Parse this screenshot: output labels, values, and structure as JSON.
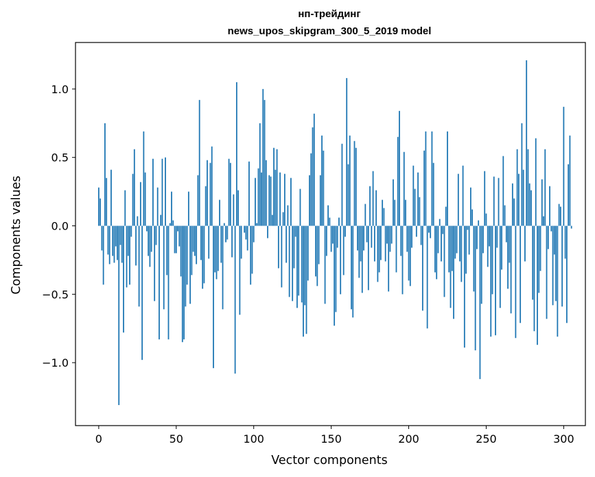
{
  "chart_data": {
    "type": "bar",
    "title": "нп-трейдинг",
    "subtitle": "news_upos_skipgram_300_5_2019 model",
    "xlabel": "Vector components",
    "ylabel": "Components values",
    "xlim": [
      -15,
      314
    ],
    "ylim": [
      -1.46,
      1.34
    ],
    "xticks": [
      0,
      50,
      100,
      150,
      200,
      250,
      300
    ],
    "xtick_labels": [
      "0",
      "50",
      "100",
      "150",
      "200",
      "250",
      "300"
    ],
    "yticks": [
      -1.0,
      -0.5,
      0.0,
      0.5,
      1.0
    ],
    "ytick_labels": [
      "−1.0",
      "−0.5",
      "0.0",
      "0.5",
      "1.0"
    ],
    "bar_color": "#1f77b4",
    "values": [
      0.28,
      0.2,
      -0.18,
      -0.43,
      0.75,
      0.35,
      -0.21,
      -0.28,
      0.41,
      -0.22,
      -0.27,
      -0.15,
      -0.25,
      -1.31,
      -0.14,
      -0.27,
      -0.78,
      0.26,
      -0.45,
      -0.22,
      -0.43,
      -0.08,
      0.38,
      0.56,
      -0.29,
      0.07,
      -0.59,
      0.32,
      -0.98,
      0.69,
      0.39,
      -0.04,
      -0.22,
      -0.3,
      -0.19,
      0.49,
      -0.55,
      -0.14,
      0.28,
      -0.83,
      0.08,
      0.49,
      -0.61,
      0.5,
      -0.36,
      -0.83,
      0.02,
      0.25,
      0.04,
      -0.2,
      -0.2,
      -0.04,
      -0.15,
      -0.37,
      -0.85,
      -0.83,
      -0.59,
      -0.43,
      0.25,
      -0.57,
      -0.36,
      -0.19,
      -0.22,
      -0.28,
      0.37,
      0.92,
      -0.25,
      -0.46,
      -0.42,
      0.29,
      0.48,
      -0.24,
      0.46,
      0.58,
      -1.04,
      -0.34,
      -0.39,
      -0.33,
      0.19,
      -0.27,
      -0.61,
      0.02,
      -0.12,
      -0.1,
      0.49,
      0.46,
      -0.23,
      0.23,
      -1.08,
      1.05,
      0.26,
      -0.65,
      -0.24,
      0.0,
      -0.05,
      -0.1,
      -0.18,
      0.47,
      -0.43,
      -0.35,
      -0.12,
      0.35,
      0.02,
      0.42,
      0.75,
      0.39,
      1.0,
      0.92,
      0.48,
      -0.09,
      0.37,
      0.36,
      0.08,
      0.57,
      0.41,
      0.56,
      -0.31,
      0.39,
      -0.45,
      0.1,
      0.38,
      -0.27,
      0.15,
      -0.52,
      0.35,
      -0.55,
      -0.31,
      -0.08,
      -0.6,
      -0.51,
      0.27,
      -0.56,
      -0.81,
      -0.58,
      -0.79,
      -0.4,
      0.37,
      0.53,
      0.72,
      0.82,
      -0.37,
      -0.44,
      -0.28,
      0.37,
      0.66,
      0.55,
      -0.57,
      -0.22,
      0.15,
      0.06,
      -0.19,
      -0.13,
      -0.73,
      -0.63,
      -0.16,
      0.06,
      -0.5,
      0.6,
      -0.36,
      -0.08,
      1.08,
      0.45,
      0.66,
      -0.61,
      -0.67,
      0.62,
      0.57,
      -0.18,
      -0.38,
      -0.26,
      -0.49,
      -0.18,
      0.16,
      -0.12,
      -0.47,
      0.29,
      -0.16,
      0.4,
      -0.26,
      0.26,
      -0.41,
      -0.34,
      -0.25,
      0.19,
      0.13,
      -0.26,
      -0.13,
      -0.48,
      -0.19,
      -0.13,
      0.34,
      0.19,
      -0.34,
      0.65,
      0.84,
      -0.22,
      -0.5,
      0.54,
      0.19,
      -0.19,
      -0.4,
      -0.44,
      -0.16,
      0.44,
      0.27,
      -0.08,
      0.39,
      0.21,
      -0.14,
      -0.62,
      0.55,
      0.69,
      -0.75,
      -0.05,
      -0.09,
      0.69,
      0.46,
      -0.34,
      -0.39,
      -0.2,
      0.05,
      -0.26,
      -0.06,
      -0.52,
      0.14,
      0.69,
      -0.34,
      -0.6,
      -0.33,
      -0.68,
      -0.24,
      -0.2,
      0.38,
      -0.26,
      -0.41,
      0.44,
      -0.89,
      -0.35,
      -0.03,
      -0.21,
      0.28,
      0.12,
      -0.48,
      -0.91,
      -0.17,
      0.04,
      -1.12,
      -0.57,
      -0.2,
      0.4,
      0.09,
      -0.3,
      -0.15,
      -0.81,
      -0.5,
      0.36,
      -0.8,
      -0.16,
      0.35,
      -0.6,
      -0.32,
      0.51,
      0.15,
      -0.12,
      -0.46,
      -0.27,
      -0.64,
      0.31,
      0.2,
      -0.82,
      0.56,
      0.38,
      -0.71,
      0.75,
      0.41,
      -0.26,
      1.21,
      0.56,
      0.31,
      0.26,
      -0.54,
      -0.77,
      0.64,
      -0.87,
      -0.49,
      -0.33,
      0.34,
      0.07,
      0.56,
      -0.68,
      -0.17,
      0.29,
      -0.04,
      -0.58,
      -0.21,
      -0.55,
      -0.81,
      0.16,
      0.14,
      -0.59,
      0.87,
      -0.24,
      -0.71,
      0.45,
      0.66,
      -0.02
    ]
  }
}
